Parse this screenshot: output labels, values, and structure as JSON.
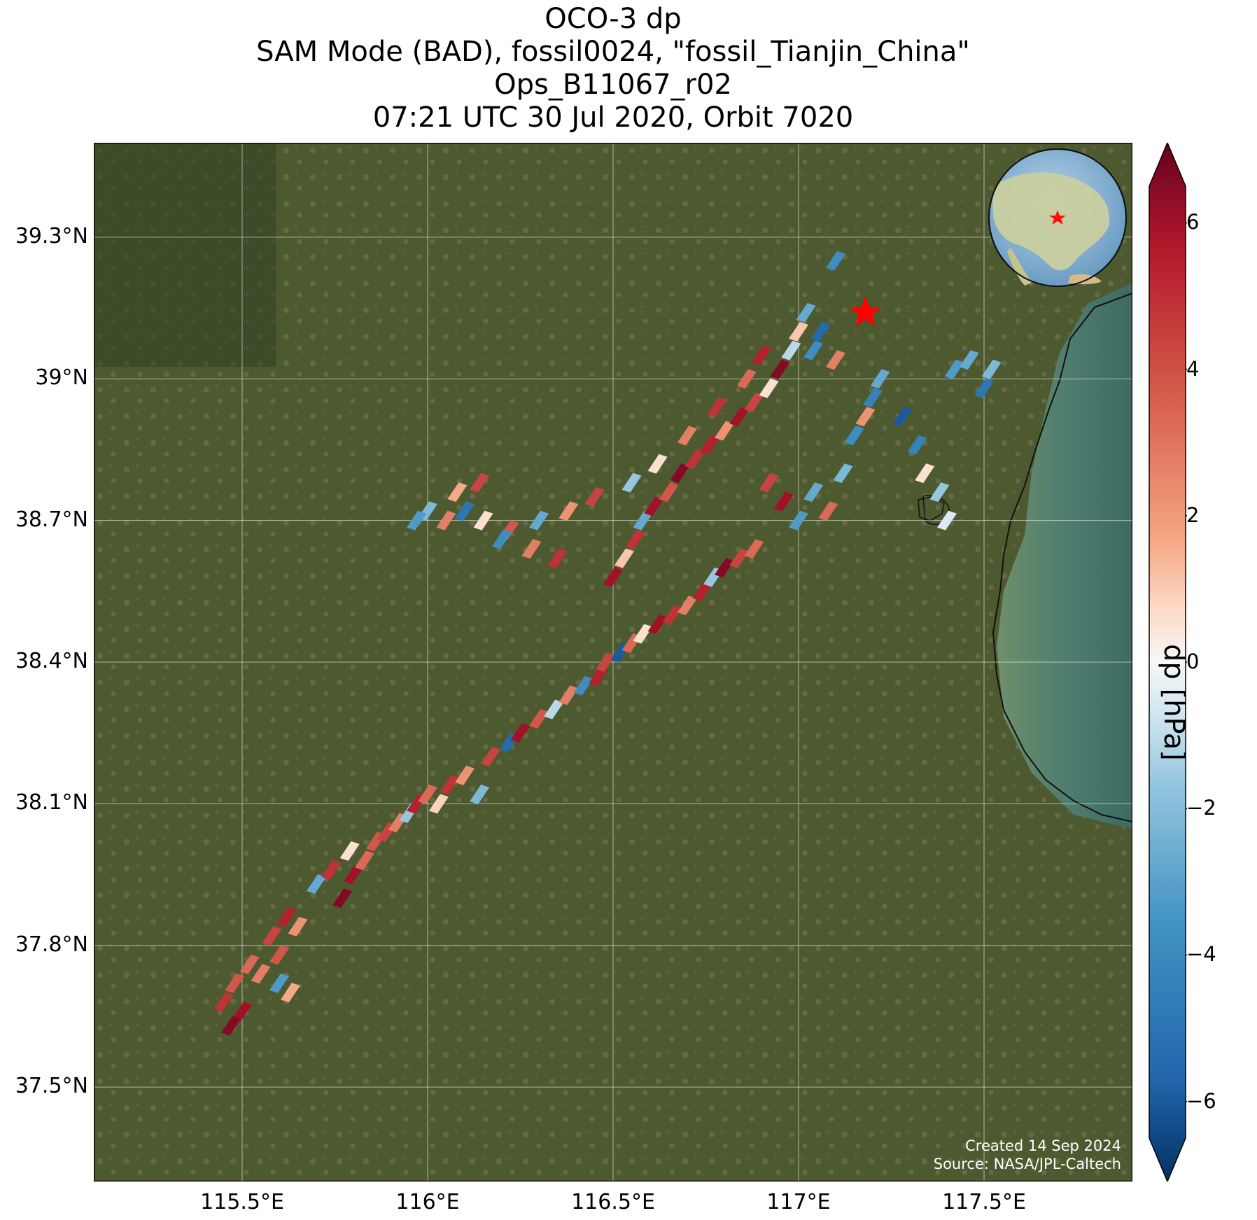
{
  "title": {
    "line1": "OCO-3 dp",
    "line2": "SAM Mode (BAD), fossil0024, \"fossil_Tianjin_China\"",
    "line3": "Ops_B11067_r02",
    "line4": "07:21 UTC 30 Jul 2020, Orbit 7020"
  },
  "map": {
    "lon_range": [
      115.1,
      117.9
    ],
    "lat_range": [
      37.3,
      39.5
    ],
    "lat_ticks": [
      "39.3°N",
      "39°N",
      "38.7°N",
      "38.4°N",
      "38.1°N",
      "37.8°N",
      "37.5°N"
    ],
    "lat_tick_values": [
      39.3,
      39.0,
      38.7,
      38.4,
      38.1,
      37.8,
      37.5
    ],
    "lon_ticks": [
      "115.5°E",
      "116°E",
      "116.5°E",
      "117°E",
      "117.5°E"
    ],
    "lon_tick_values": [
      115.5,
      116.0,
      116.5,
      117.0,
      117.5
    ],
    "target": {
      "name": "fossil_Tianjin_China",
      "lon": 117.18,
      "lat": 39.14,
      "marker": "red-star"
    },
    "basemap": "satellite imagery",
    "inset": "globe locator with red star"
  },
  "colorbar": {
    "label": "dp [hPa]",
    "range": [
      -6.5,
      6.5
    ],
    "ticks": [
      "6",
      "4",
      "2",
      "0",
      "−2",
      "−4",
      "−6"
    ],
    "tick_values": [
      6,
      4,
      2,
      0,
      -2,
      -4,
      -6
    ],
    "colormap": "RdBu_r",
    "extend": "both"
  },
  "credits": {
    "created": "Created 14 Sep 2024",
    "source": "Source: NASA/JPL-Caltech"
  },
  "chart_data": {
    "type": "scatter",
    "description_fields": "soundings along SAM swath; lon, lat, dp [hPa]",
    "series": [
      {
        "points": [
          [
            115.45,
            37.68,
            4.5
          ],
          [
            115.48,
            37.72,
            3.5
          ],
          [
            115.5,
            37.66,
            5.5
          ],
          [
            115.47,
            37.63,
            6.0
          ],
          [
            115.52,
            37.76,
            3.0
          ],
          [
            115.55,
            37.74,
            2.5
          ],
          [
            115.58,
            37.82,
            4.0
          ],
          [
            115.6,
            37.78,
            3.5
          ],
          [
            115.62,
            37.86,
            5.0
          ],
          [
            115.65,
            37.84,
            2.0
          ],
          [
            115.6,
            37.72,
            -3.0
          ],
          [
            115.63,
            37.7,
            1.5
          ],
          [
            115.7,
            37.93,
            -2.5
          ],
          [
            115.74,
            37.96,
            4.5
          ],
          [
            115.77,
            37.9,
            6.0
          ],
          [
            115.8,
            37.95,
            5.5
          ],
          [
            115.83,
            37.98,
            3.0
          ],
          [
            115.79,
            38.0,
            0.5
          ],
          [
            115.86,
            38.02,
            3.5
          ],
          [
            115.89,
            38.04,
            4.0
          ],
          [
            115.92,
            38.06,
            2.5
          ],
          [
            115.95,
            38.08,
            -1.5
          ],
          [
            115.97,
            38.1,
            5.0
          ],
          [
            116.0,
            38.12,
            3.0
          ],
          [
            116.03,
            38.1,
            0.8
          ],
          [
            116.06,
            38.14,
            4.5
          ],
          [
            116.1,
            38.16,
            2.0
          ],
          [
            116.14,
            38.12,
            -2.0
          ],
          [
            116.17,
            38.2,
            4.0
          ],
          [
            116.22,
            38.23,
            -5.0
          ],
          [
            116.25,
            38.25,
            5.5
          ],
          [
            116.3,
            38.28,
            3.5
          ],
          [
            116.34,
            38.3,
            -1.0
          ],
          [
            116.38,
            38.33,
            2.5
          ],
          [
            116.42,
            38.35,
            -3.5
          ],
          [
            116.46,
            38.37,
            5.0
          ],
          [
            116.48,
            38.4,
            4.0
          ],
          [
            116.52,
            38.42,
            -5.5
          ],
          [
            116.55,
            38.44,
            3.0
          ],
          [
            116.58,
            38.46,
            0.5
          ],
          [
            116.62,
            38.48,
            5.5
          ],
          [
            116.66,
            38.5,
            4.5
          ],
          [
            116.7,
            38.52,
            2.5
          ],
          [
            116.74,
            38.55,
            5.0
          ],
          [
            116.77,
            38.58,
            -1.5
          ],
          [
            116.8,
            38.6,
            6.0
          ],
          [
            116.84,
            38.62,
            4.0
          ],
          [
            116.88,
            38.64,
            3.0
          ],
          [
            116.5,
            38.58,
            5.5
          ],
          [
            116.53,
            38.62,
            1.0
          ],
          [
            116.56,
            38.66,
            4.5
          ],
          [
            116.58,
            38.7,
            -2.5
          ],
          [
            116.61,
            38.73,
            5.5
          ],
          [
            116.65,
            38.76,
            3.5
          ],
          [
            116.68,
            38.8,
            6.0
          ],
          [
            116.72,
            38.83,
            4.5
          ],
          [
            116.76,
            38.86,
            5.0
          ],
          [
            116.8,
            38.89,
            2.0
          ],
          [
            116.84,
            38.92,
            5.5
          ],
          [
            116.88,
            38.95,
            4.0
          ],
          [
            116.92,
            38.98,
            0.5
          ],
          [
            116.95,
            39.02,
            6.0
          ],
          [
            116.98,
            39.06,
            -1.0
          ],
          [
            117.0,
            39.1,
            1.0
          ],
          [
            116.9,
            39.05,
            5.0
          ],
          [
            116.86,
            39.0,
            3.0
          ],
          [
            116.78,
            38.94,
            4.5
          ],
          [
            116.7,
            38.88,
            2.5
          ],
          [
            116.62,
            38.82,
            0.5
          ],
          [
            116.55,
            38.78,
            -1.5
          ],
          [
            116.45,
            38.75,
            4.0
          ],
          [
            116.38,
            38.72,
            2.0
          ],
          [
            116.3,
            38.7,
            -2.5
          ],
          [
            116.22,
            38.68,
            3.5
          ],
          [
            116.15,
            38.7,
            0.5
          ],
          [
            116.1,
            38.72,
            -4.5
          ],
          [
            116.05,
            38.7,
            2.5
          ],
          [
            116.0,
            38.72,
            -2.0
          ],
          [
            115.97,
            38.7,
            -3.0
          ],
          [
            116.08,
            38.76,
            1.5
          ],
          [
            116.14,
            38.78,
            4.0
          ],
          [
            116.2,
            38.66,
            -3.5
          ],
          [
            116.28,
            38.64,
            2.5
          ],
          [
            116.35,
            38.62,
            4.5
          ],
          [
            116.92,
            38.78,
            4.0
          ],
          [
            116.96,
            38.74,
            5.5
          ],
          [
            117.0,
            38.7,
            -3.0
          ],
          [
            117.04,
            38.76,
            -2.5
          ],
          [
            117.08,
            38.72,
            3.0
          ],
          [
            117.12,
            38.8,
            -2.0
          ],
          [
            117.15,
            38.88,
            -3.5
          ],
          [
            117.18,
            38.92,
            2.0
          ],
          [
            117.2,
            38.96,
            -4.0
          ],
          [
            117.04,
            39.06,
            -3.5
          ],
          [
            117.06,
            39.1,
            -5.0
          ],
          [
            117.1,
            39.04,
            2.5
          ],
          [
            117.22,
            39.0,
            -2.5
          ],
          [
            117.28,
            38.92,
            -5.5
          ],
          [
            117.32,
            38.86,
            -4.0
          ],
          [
            117.34,
            38.8,
            0.5
          ],
          [
            117.38,
            38.76,
            -1.5
          ],
          [
            117.4,
            38.7,
            -0.5
          ],
          [
            117.42,
            39.02,
            -3.0
          ],
          [
            117.46,
            39.04,
            -2.5
          ],
          [
            117.5,
            38.98,
            -4.5
          ],
          [
            117.52,
            39.02,
            -2.0
          ],
          [
            117.1,
            39.25,
            -3.5
          ],
          [
            117.02,
            39.14,
            -2.5
          ]
        ]
      }
    ]
  }
}
